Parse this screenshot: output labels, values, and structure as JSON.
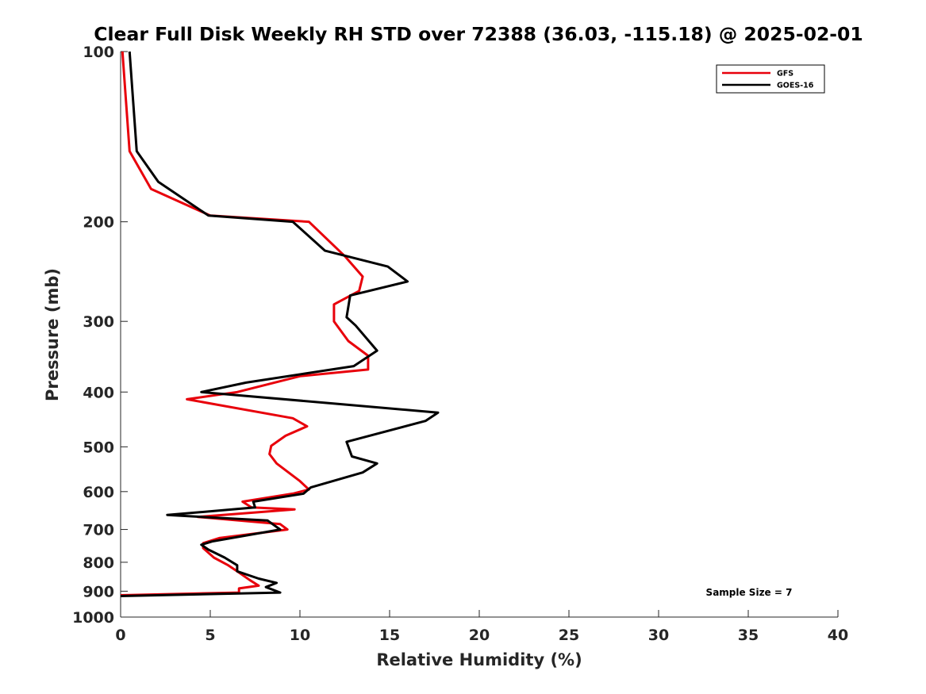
{
  "chart_data": {
    "type": "line",
    "title": "Clear Full Disk Weekly RH STD over 72388 (36.03, -115.18) @ 2025-02-01",
    "xlabel": "Relative Humidity (%)",
    "ylabel": "Pressure (mb)",
    "xlim": [
      0,
      40
    ],
    "ylim": [
      1000,
      100
    ],
    "yscale": "log",
    "y_reversed": true,
    "xticks": [
      0,
      5,
      10,
      15,
      20,
      25,
      30,
      35,
      40
    ],
    "xtick_labels": [
      "0",
      "5",
      "10",
      "15",
      "20",
      "25",
      "30",
      "35",
      "40"
    ],
    "yticks": [
      100,
      200,
      300,
      400,
      500,
      600,
      700,
      800,
      900,
      1000
    ],
    "ytick_labels": [
      "100",
      "200",
      "300",
      "400",
      "500",
      "600",
      "700",
      "800",
      "900",
      "1000"
    ],
    "grid": false,
    "legend_position": "top-right",
    "annotation": "Sample Size = 7",
    "series": [
      {
        "name": "GFS",
        "color": "#e8000b",
        "points": [
          [
            0.1,
            100
          ],
          [
            0.5,
            150
          ],
          [
            1.7,
            175
          ],
          [
            5.0,
            195
          ],
          [
            10.5,
            200
          ],
          [
            12.5,
            230
          ],
          [
            13.5,
            250
          ],
          [
            13.3,
            265
          ],
          [
            11.9,
            280
          ],
          [
            11.9,
            300
          ],
          [
            12.7,
            325
          ],
          [
            13.8,
            345
          ],
          [
            13.8,
            365
          ],
          [
            10.0,
            375
          ],
          [
            6.5,
            400
          ],
          [
            3.7,
            412
          ],
          [
            9.6,
            445
          ],
          [
            10.4,
            460
          ],
          [
            9.2,
            478
          ],
          [
            8.4,
            498
          ],
          [
            8.3,
            515
          ],
          [
            8.7,
            535
          ],
          [
            10.0,
            575
          ],
          [
            10.5,
            595
          ],
          [
            9.6,
            605
          ],
          [
            6.8,
            625
          ],
          [
            7.3,
            640
          ],
          [
            9.7,
            645
          ],
          [
            4.3,
            665
          ],
          [
            8.9,
            685
          ],
          [
            9.3,
            700
          ],
          [
            5.5,
            725
          ],
          [
            4.6,
            740
          ],
          [
            4.6,
            755
          ],
          [
            5.2,
            785
          ],
          [
            6.0,
            810
          ],
          [
            6.5,
            830
          ],
          [
            7.2,
            860
          ],
          [
            7.7,
            880
          ],
          [
            6.6,
            890
          ],
          [
            6.6,
            905
          ],
          [
            0,
            915
          ]
        ]
      },
      {
        "name": "GOES-16",
        "color": "#000000",
        "points": [
          [
            0.5,
            100
          ],
          [
            0.9,
            150
          ],
          [
            2.1,
            170
          ],
          [
            4.9,
            195
          ],
          [
            9.6,
            200
          ],
          [
            11.4,
            225
          ],
          [
            14.9,
            240
          ],
          [
            16.0,
            255
          ],
          [
            12.8,
            270
          ],
          [
            12.6,
            295
          ],
          [
            13.1,
            305
          ],
          [
            14.3,
            338
          ],
          [
            13.0,
            360
          ],
          [
            7.0,
            385
          ],
          [
            4.5,
            400
          ],
          [
            17.7,
            435
          ],
          [
            17.0,
            450
          ],
          [
            12.6,
            490
          ],
          [
            12.9,
            520
          ],
          [
            14.3,
            535
          ],
          [
            13.5,
            555
          ],
          [
            10.6,
            590
          ],
          [
            10.2,
            605
          ],
          [
            7.4,
            625
          ],
          [
            7.5,
            640
          ],
          [
            2.6,
            660
          ],
          [
            8.2,
            675
          ],
          [
            8.9,
            700
          ],
          [
            5.1,
            735
          ],
          [
            4.5,
            745
          ],
          [
            4.9,
            760
          ],
          [
            5.8,
            785
          ],
          [
            6.5,
            810
          ],
          [
            6.5,
            830
          ],
          [
            7.7,
            855
          ],
          [
            8.7,
            870
          ],
          [
            8.1,
            885
          ],
          [
            8.9,
            905
          ],
          [
            0,
            918
          ]
        ]
      }
    ]
  }
}
